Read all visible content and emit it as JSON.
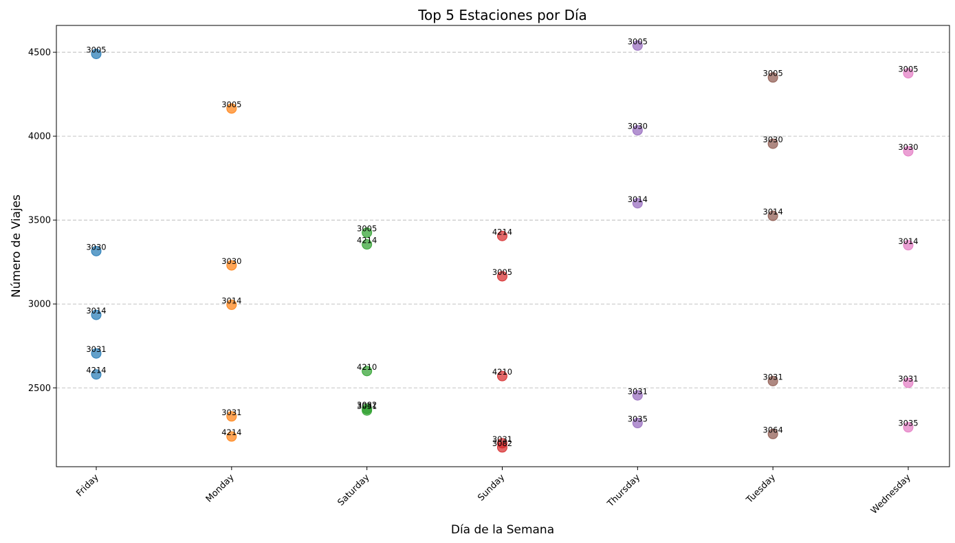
{
  "chart_data": {
    "type": "scatter",
    "title": "Top 5 Estaciones por Día",
    "xlabel": "Día de la Semana",
    "ylabel": "Número de Viajes",
    "categories": [
      "Friday",
      "Monday",
      "Saturday",
      "Sunday",
      "Thursday",
      "Tuesday",
      "Wednesday"
    ],
    "yticks": [
      2500,
      3000,
      3500,
      4000,
      4500
    ],
    "ylim": [
      2030,
      4660
    ],
    "grid": "horizontal-dashed",
    "series": [
      {
        "category": "Friday",
        "color": "#1f77b4",
        "points": [
          {
            "station": "3005",
            "value": 4490
          },
          {
            "station": "3030",
            "value": 3315
          },
          {
            "station": "3014",
            "value": 2935
          },
          {
            "station": "3031",
            "value": 2705
          },
          {
            "station": "4214",
            "value": 2580
          }
        ]
      },
      {
        "category": "Monday",
        "color": "#ff7f0e",
        "points": [
          {
            "station": "3005",
            "value": 4165
          },
          {
            "station": "3030",
            "value": 3230
          },
          {
            "station": "3014",
            "value": 2995
          },
          {
            "station": "3031",
            "value": 2330
          },
          {
            "station": "4214",
            "value": 2210
          }
        ]
      },
      {
        "category": "Saturday",
        "color": "#2ca02c",
        "points": [
          {
            "station": "3005",
            "value": 3425
          },
          {
            "station": "4214",
            "value": 3355
          },
          {
            "station": "4210",
            "value": 2600
          },
          {
            "station": "3082",
            "value": 2375
          },
          {
            "station": "3031",
            "value": 2365
          }
        ]
      },
      {
        "category": "Sunday",
        "color": "#d62728",
        "points": [
          {
            "station": "4214",
            "value": 3405
          },
          {
            "station": "3005",
            "value": 3165
          },
          {
            "station": "4210",
            "value": 2570
          },
          {
            "station": "3031",
            "value": 2170
          },
          {
            "station": "3082",
            "value": 2145
          }
        ]
      },
      {
        "category": "Thursday",
        "color": "#9467bd",
        "points": [
          {
            "station": "3005",
            "value": 4540
          },
          {
            "station": "3030",
            "value": 4035
          },
          {
            "station": "3014",
            "value": 3600
          },
          {
            "station": "3031",
            "value": 2455
          },
          {
            "station": "3035",
            "value": 2290
          }
        ]
      },
      {
        "category": "Tuesday",
        "color": "#8c564b",
        "points": [
          {
            "station": "3005",
            "value": 4350
          },
          {
            "station": "3030",
            "value": 3955
          },
          {
            "station": "3014",
            "value": 3525
          },
          {
            "station": "3031",
            "value": 2540
          },
          {
            "station": "3064",
            "value": 2225
          }
        ]
      },
      {
        "category": "Wednesday",
        "color": "#e377c2",
        "points": [
          {
            "station": "3005",
            "value": 4375
          },
          {
            "station": "3030",
            "value": 3910
          },
          {
            "station": "3014",
            "value": 3350
          },
          {
            "station": "3031",
            "value": 2530
          },
          {
            "station": "3035",
            "value": 2265
          }
        ]
      }
    ]
  }
}
